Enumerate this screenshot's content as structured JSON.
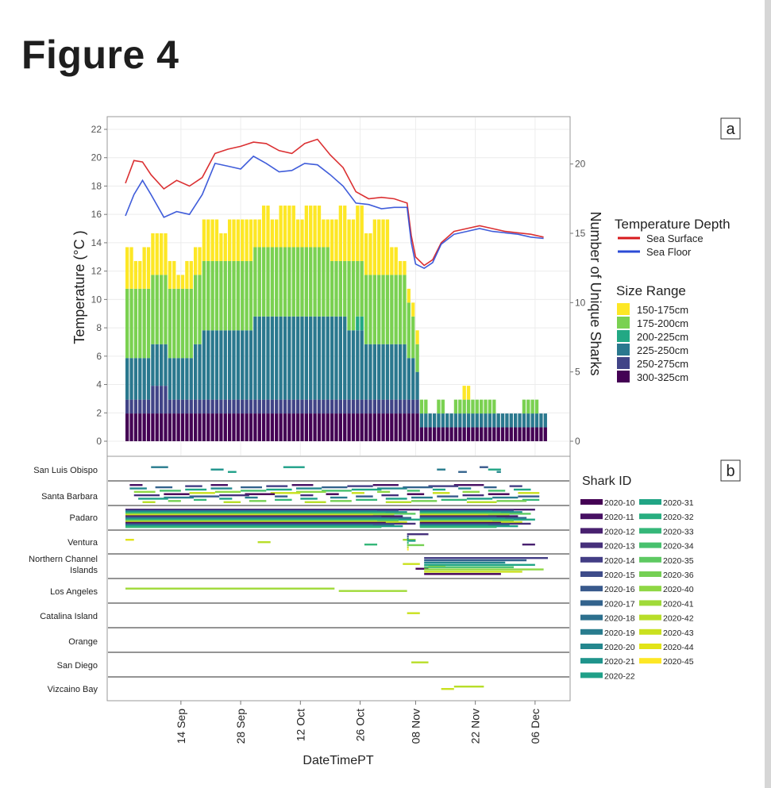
{
  "figure": {
    "title": "Figure 4"
  },
  "colors": {
    "sea_surface": "#d7191c",
    "sea_floor": "#2b4bd6",
    "size_150_175": "#fde725",
    "size_175_200": "#7ad151",
    "size_200_225": "#22a884",
    "size_225_250": "#2a788e",
    "size_250_275": "#414487",
    "size_300_325": "#440154"
  },
  "chart_data": [
    {
      "type": "line",
      "panel_label": "a",
      "ylabel": "Temperature (°C )",
      "ylabel_right": "Number of Unique Sharks",
      "ylim": [
        0,
        22
      ],
      "ylim_right": [
        0,
        22.5
      ],
      "y_ticks": [
        "0",
        "2",
        "4",
        "6",
        "8",
        "10",
        "12",
        "14",
        "16",
        "18",
        "20",
        "22"
      ],
      "y_ticks_right": [
        "0",
        "5",
        "10",
        "15",
        "20"
      ],
      "xlabel": "DateTimePT",
      "x_ticks": [
        "14 Sep",
        "28 Sep",
        "12 Oct",
        "26 Oct",
        "08 Nov",
        "22 Nov",
        "06 Dec"
      ],
      "x_tick_days": [
        14,
        28,
        42,
        56,
        69,
        83,
        97
      ],
      "x_start_day": 1,
      "x_end_day": 100,
      "legend_temperature": {
        "title": "Temperature Depth",
        "entries": [
          "Sea Surface",
          "Sea Floor"
        ]
      },
      "legend_size": {
        "title": "Size Range",
        "entries": [
          "150-175cm",
          "175-200cm",
          "200-225cm",
          "225-250cm",
          "250-275cm",
          "300-325cm"
        ]
      },
      "series": [
        {
          "name": "Sea Surface",
          "x": [
            1,
            3,
            5,
            7,
            10,
            13,
            16,
            19,
            22,
            25,
            28,
            31,
            34,
            37,
            40,
            43,
            46,
            49,
            52,
            55,
            58,
            61,
            64,
            67,
            68,
            69,
            71,
            73,
            75,
            78,
            81,
            84,
            87,
            90,
            93,
            96,
            99
          ],
          "y": [
            18.2,
            19.8,
            19.7,
            18.8,
            17.8,
            18.4,
            18.0,
            18.6,
            20.3,
            20.6,
            20.8,
            21.1,
            21.0,
            20.5,
            20.3,
            21.0,
            21.3,
            20.2,
            19.3,
            17.6,
            17.1,
            17.2,
            17.1,
            16.8,
            14.5,
            13.0,
            12.4,
            12.8,
            14.0,
            14.8,
            15.0,
            15.2,
            15.0,
            14.8,
            14.7,
            14.6,
            14.4
          ]
        },
        {
          "name": "Sea Floor",
          "x": [
            1,
            3,
            5,
            7,
            10,
            13,
            16,
            19,
            22,
            25,
            28,
            31,
            34,
            37,
            40,
            43,
            46,
            49,
            52,
            55,
            58,
            61,
            64,
            67,
            68,
            69,
            71,
            73,
            75,
            78,
            81,
            84,
            87,
            90,
            93,
            96,
            99
          ],
          "y": [
            15.9,
            17.4,
            18.4,
            17.4,
            15.8,
            16.2,
            16.0,
            17.4,
            19.6,
            19.4,
            19.2,
            20.1,
            19.6,
            19.0,
            19.1,
            19.6,
            19.5,
            18.8,
            18.0,
            16.8,
            16.7,
            16.4,
            16.5,
            16.5,
            14.0,
            12.5,
            12.2,
            12.6,
            13.9,
            14.6,
            14.8,
            15.0,
            14.8,
            14.7,
            14.6,
            14.4,
            14.3
          ]
        }
      ],
      "stacked_counts": {
        "segments": [
          {
            "name": "300-325cm",
            "day_from": [
              1,
              70,
              73,
              82,
              88
            ],
            "day_to": [
              70,
              73,
              82,
              88,
              100
            ],
            "values": [
              2,
              1,
              1,
              1,
              1
            ]
          },
          {
            "name": "250-275cm",
            "day_from": [
              1
            ],
            "day_to": [
              69
            ],
            "values": [
              1
            ]
          },
          {
            "name": "225-250cm",
            "day_from": [
              1
            ],
            "day_to": [
              69
            ],
            "values": [
              3
            ]
          },
          {
            "name": "175-200cm",
            "day_from": [
              1
            ],
            "day_to": [
              65
            ],
            "values": [
              5
            ]
          },
          {
            "name": "150-175cm",
            "day_from": [
              1
            ],
            "day_to": [
              66
            ],
            "values": [
              3
            ]
          }
        ],
        "totals_x": [
          1,
          3,
          5,
          7,
          9,
          11,
          13,
          15,
          17,
          19,
          21,
          23,
          25,
          27,
          29,
          31,
          33,
          35,
          37,
          39,
          41,
          43,
          45,
          47,
          49,
          51,
          53,
          55,
          57,
          59,
          61,
          63,
          65,
          67,
          68,
          69,
          70,
          72,
          74,
          76,
          78,
          80,
          82,
          84,
          86,
          88,
          90,
          92,
          94,
          96,
          98
        ],
        "totals": [
          14,
          13,
          14,
          15,
          15,
          13,
          12,
          13,
          14,
          16,
          16,
          15,
          16,
          16,
          16,
          16,
          17,
          16,
          17,
          17,
          16,
          17,
          17,
          16,
          16,
          17,
          16,
          17,
          15,
          16,
          16,
          14,
          13,
          11,
          10,
          8,
          3,
          2,
          3,
          2,
          3,
          4,
          3,
          3,
          3,
          2,
          2,
          2,
          3,
          3,
          2
        ],
        "stack_order": [
          "300-325cm",
          "250-275cm",
          "225-250cm",
          "200-225cm",
          "175-200cm",
          "150-175cm"
        ],
        "stacks": [
          [
            2,
            1,
            3,
            0,
            5,
            3
          ],
          [
            2,
            1,
            3,
            0,
            5,
            2
          ],
          [
            2,
            1,
            3,
            0,
            5,
            3
          ],
          [
            2,
            2,
            3,
            0,
            5,
            3
          ],
          [
            2,
            2,
            3,
            0,
            5,
            3
          ],
          [
            2,
            1,
            3,
            0,
            5,
            2
          ],
          [
            2,
            1,
            3,
            0,
            5,
            1
          ],
          [
            2,
            1,
            3,
            0,
            5,
            2
          ],
          [
            2,
            1,
            4,
            0,
            5,
            2
          ],
          [
            2,
            1,
            5,
            0,
            5,
            3
          ],
          [
            2,
            1,
            5,
            0,
            5,
            3
          ],
          [
            2,
            1,
            5,
            0,
            5,
            2
          ],
          [
            2,
            1,
            5,
            0,
            5,
            3
          ],
          [
            2,
            1,
            5,
            0,
            5,
            3
          ],
          [
            2,
            1,
            5,
            0,
            5,
            3
          ],
          [
            2,
            1,
            6,
            0,
            5,
            2
          ],
          [
            2,
            1,
            6,
            0,
            5,
            3
          ],
          [
            2,
            1,
            6,
            0,
            5,
            2
          ],
          [
            2,
            1,
            6,
            0,
            5,
            3
          ],
          [
            2,
            1,
            6,
            0,
            5,
            3
          ],
          [
            2,
            1,
            6,
            0,
            5,
            2
          ],
          [
            2,
            1,
            6,
            0,
            5,
            3
          ],
          [
            2,
            1,
            6,
            0,
            5,
            3
          ],
          [
            2,
            1,
            6,
            0,
            5,
            2
          ],
          [
            2,
            1,
            6,
            0,
            4,
            3
          ],
          [
            2,
            1,
            6,
            0,
            4,
            4
          ],
          [
            2,
            1,
            5,
            0,
            5,
            3
          ],
          [
            2,
            1,
            5,
            1,
            4,
            4
          ],
          [
            2,
            1,
            4,
            0,
            5,
            3
          ],
          [
            2,
            1,
            4,
            0,
            5,
            4
          ],
          [
            2,
            1,
            4,
            0,
            5,
            4
          ],
          [
            2,
            1,
            4,
            0,
            5,
            2
          ],
          [
            2,
            1,
            4,
            0,
            5,
            1
          ],
          [
            2,
            1,
            3,
            0,
            4,
            1
          ],
          [
            2,
            1,
            3,
            0,
            3,
            1
          ],
          [
            2,
            1,
            2,
            0,
            2,
            1
          ],
          [
            1,
            0,
            1,
            0,
            1,
            0
          ],
          [
            1,
            0,
            1,
            0,
            0,
            0
          ],
          [
            1,
            0,
            1,
            0,
            1,
            0
          ],
          [
            1,
            0,
            1,
            0,
            0,
            0
          ],
          [
            1,
            0,
            1,
            0,
            1,
            0
          ],
          [
            1,
            0,
            1,
            0,
            1,
            1
          ],
          [
            1,
            0,
            1,
            0,
            1,
            0
          ],
          [
            1,
            0,
            1,
            0,
            1,
            0
          ],
          [
            1,
            0,
            1,
            0,
            1,
            0
          ],
          [
            1,
            0,
            1,
            0,
            0,
            0
          ],
          [
            1,
            0,
            1,
            0,
            0,
            0
          ],
          [
            1,
            0,
            1,
            0,
            0,
            0
          ],
          [
            1,
            0,
            1,
            0,
            1,
            0
          ],
          [
            1,
            0,
            1,
            0,
            1,
            0
          ],
          [
            1,
            0,
            1,
            0,
            0,
            0
          ]
        ]
      }
    },
    {
      "type": "gantt",
      "panel_label": "b",
      "xlabel": "DateTimePT",
      "x_ticks": [
        "14 Sep",
        "28 Sep",
        "12 Oct",
        "26 Oct",
        "08 Nov",
        "22 Nov",
        "06 Dec"
      ],
      "regions": [
        "San Luis Obispo",
        "Santa Barbara",
        "Padaro",
        "Ventura",
        "Northern Channel Islands",
        "Los Angeles",
        "Catalina Island",
        "Orange",
        "San Diego",
        "Vizcaino Bay"
      ],
      "legend_title": "Shark ID",
      "shark_ids": [
        "2020-10",
        "2020-11",
        "2020-12",
        "2020-13",
        "2020-14",
        "2020-15",
        "2020-16",
        "2020-17",
        "2020-18",
        "2020-19",
        "2020-20",
        "2020-21",
        "2020-22",
        "2020-31",
        "2020-32",
        "2020-33",
        "2020-34",
        "2020-35",
        "2020-36",
        "2020-40",
        "2020-41",
        "2020-42",
        "2020-43",
        "2020-44",
        "2020-45"
      ],
      "shark_colors": [
        "#440154",
        "#471063",
        "#48206f",
        "#46307b",
        "#433e85",
        "#3e4c8a",
        "#38598c",
        "#33638d",
        "#2d708e",
        "#287c8e",
        "#24878e",
        "#1f948c",
        "#1fa088",
        "#21a585",
        "#28ae80",
        "#35b779",
        "#48c16e",
        "#5ec962",
        "#75d054",
        "#8fd744",
        "#a0da39",
        "#b8de29",
        "#cae11f",
        "#e2e418",
        "#fde725"
      ],
      "detections": [
        {
          "region": 0,
          "segs": [
            [
              7,
              11,
              "2020-19"
            ],
            [
              21,
              24,
              "2020-21"
            ],
            [
              25,
              27,
              "2020-22"
            ],
            [
              38,
              43,
              "2020-22"
            ],
            [
              74,
              76,
              "2020-19"
            ],
            [
              79,
              81,
              "2020-17"
            ],
            [
              84,
              86,
              "2020-16"
            ],
            [
              86,
              89,
              "2020-31"
            ],
            [
              88,
              89,
              "2020-20"
            ]
          ]
        },
        {
          "region": 1,
          "segs": [
            [
              2,
              98,
              "mixed"
            ]
          ]
        },
        {
          "region": 2,
          "segs": [
            [
              1,
              70,
              "mixed"
            ],
            [
              70,
              97,
              "mixed"
            ]
          ]
        },
        {
          "region": 3,
          "segs": [
            [
              1,
              3,
              "2020-44"
            ],
            [
              32,
              35,
              "2020-42"
            ],
            [
              57,
              60,
              "2020-33"
            ],
            [
              66,
              69,
              "2020-41"
            ],
            [
              67,
              72,
              "mixed"
            ],
            [
              94,
              97,
              "2020-12"
            ]
          ]
        },
        {
          "region": 4,
          "segs": [
            [
              66,
              70,
              "2020-43"
            ],
            [
              72,
              76,
              "2020-44"
            ],
            [
              69,
              72,
              "2020-10"
            ],
            [
              71,
              100,
              "mixed"
            ]
          ]
        },
        {
          "region": 5,
          "segs": [
            [
              1,
              50,
              "2020-41"
            ],
            [
              51,
              67,
              "2020-41"
            ]
          ]
        },
        {
          "region": 6,
          "segs": [
            [
              67,
              70,
              "2020-43"
            ]
          ]
        },
        {
          "region": 7,
          "segs": []
        },
        {
          "region": 8,
          "segs": [
            [
              68,
              72,
              "2020-42"
            ]
          ]
        },
        {
          "region": 9,
          "segs": [
            [
              78,
              85,
              "2020-42"
            ],
            [
              75,
              78,
              "2020-43"
            ]
          ]
        }
      ]
    }
  ]
}
